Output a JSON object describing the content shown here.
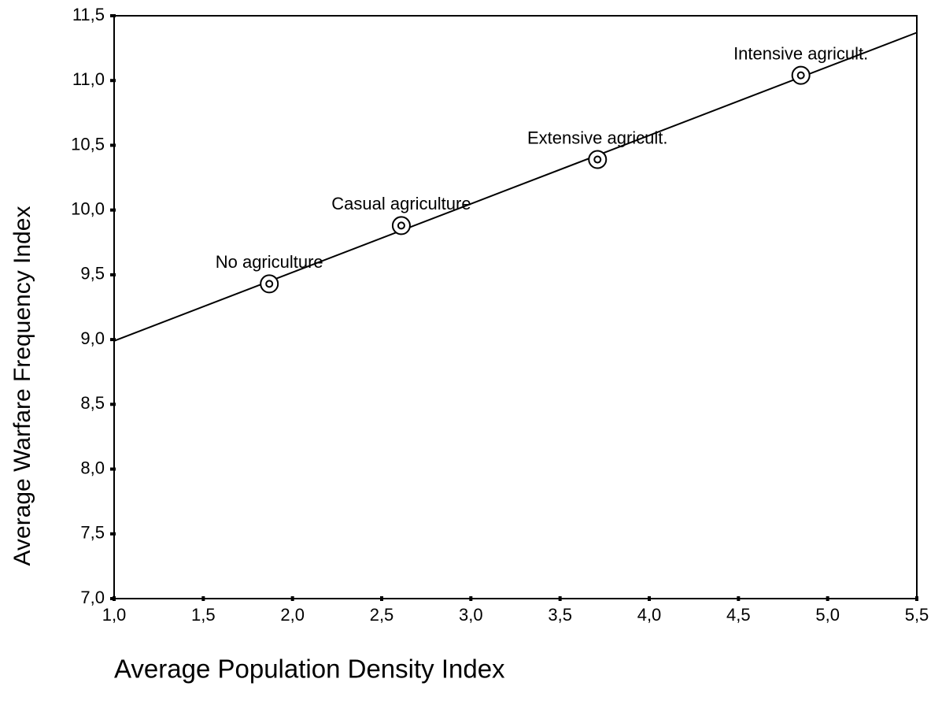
{
  "chart_data": {
    "type": "scatter",
    "xlabel": "Average Population Density Index",
    "ylabel": "Average Warfare Frequency Index",
    "x": [
      1.87,
      2.61,
      3.71,
      4.85
    ],
    "y": [
      9.43,
      9.88,
      10.39,
      11.04
    ],
    "point_labels": [
      "No agriculture",
      "Casual agriculture",
      "Extensive agricult.",
      "Intensive agricult."
    ],
    "fit_line": {
      "x": [
        1.0,
        5.5
      ],
      "y": [
        8.99,
        11.37
      ]
    },
    "color": "#000000",
    "xlim": [
      1.0,
      5.5
    ],
    "ylim": [
      7.0,
      11.5
    ],
    "xticks": [
      {
        "value": 1.0,
        "label": "1,0"
      },
      {
        "value": 1.5,
        "label": "1,5"
      },
      {
        "value": 2.0,
        "label": "2,0"
      },
      {
        "value": 2.5,
        "label": "2,5"
      },
      {
        "value": 3.0,
        "label": "3,0"
      },
      {
        "value": 3.5,
        "label": "3,5"
      },
      {
        "value": 4.0,
        "label": "4,0"
      },
      {
        "value": 4.5,
        "label": "4,5"
      },
      {
        "value": 5.0,
        "label": "5,0"
      },
      {
        "value": 5.5,
        "label": "5,5"
      }
    ],
    "yticks": [
      {
        "value": 7.0,
        "label": "7,0"
      },
      {
        "value": 7.5,
        "label": "7,5"
      },
      {
        "value": 8.0,
        "label": "8,0"
      },
      {
        "value": 8.5,
        "label": "8,5"
      },
      {
        "value": 9.0,
        "label": "9,0"
      },
      {
        "value": 9.5,
        "label": "9,5"
      },
      {
        "value": 10.0,
        "label": "10,0"
      },
      {
        "value": 10.5,
        "label": "10,5"
      },
      {
        "value": 11.0,
        "label": "11,0"
      },
      {
        "value": 11.5,
        "label": "11,5"
      }
    ]
  }
}
